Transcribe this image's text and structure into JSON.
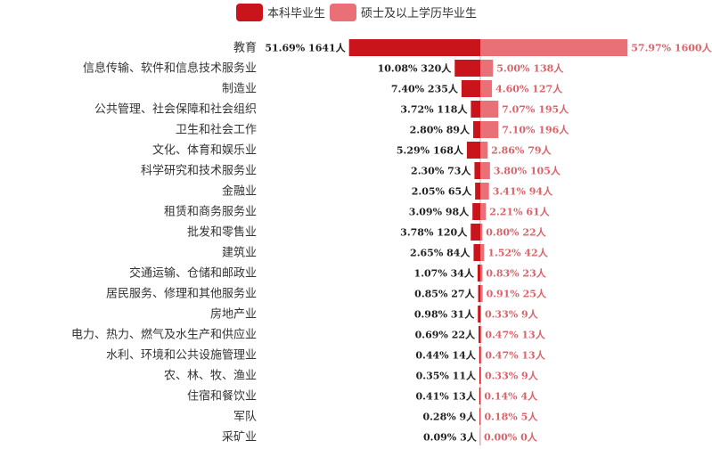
{
  "chart_data": {
    "type": "bar",
    "legend_position": "top-center",
    "colors": {
      "undergrad": "#c9141c",
      "grad": "#ea7078"
    },
    "series": [
      {
        "name": "本科毕业生",
        "key": "undergrad"
      },
      {
        "name": "硕士及以上学历毕业生",
        "key": "grad"
      }
    ],
    "rows": [
      {
        "category": "教育",
        "ug_pct": 51.69,
        "ug_count": 1641,
        "gr_pct": 57.97,
        "gr_count": 1600,
        "ug_label": "51.69%  1641人",
        "gr_label": "57.97%  1600人"
      },
      {
        "category": "信息传输、软件和信息技术服务业",
        "ug_pct": 10.08,
        "ug_count": 320,
        "gr_pct": 5.0,
        "gr_count": 138,
        "ug_label": "10.08%  320人",
        "gr_label": "5.00%  138人"
      },
      {
        "category": "制造业",
        "ug_pct": 7.4,
        "ug_count": 235,
        "gr_pct": 4.6,
        "gr_count": 127,
        "ug_label": "7.40%  235人",
        "gr_label": "4.60%  127人"
      },
      {
        "category": "公共管理、社会保障和社会组织",
        "ug_pct": 3.72,
        "ug_count": 118,
        "gr_pct": 7.07,
        "gr_count": 195,
        "ug_label": "3.72%  118人",
        "gr_label": "7.07%  195人"
      },
      {
        "category": "卫生和社会工作",
        "ug_pct": 2.8,
        "ug_count": 89,
        "gr_pct": 7.1,
        "gr_count": 196,
        "ug_label": "2.80%  89人",
        "gr_label": "7.10%  196人"
      },
      {
        "category": "文化、体育和娱乐业",
        "ug_pct": 5.29,
        "ug_count": 168,
        "gr_pct": 2.86,
        "gr_count": 79,
        "ug_label": "5.29%  168人",
        "gr_label": "2.86%  79人"
      },
      {
        "category": "科学研究和技术服务业",
        "ug_pct": 2.3,
        "ug_count": 73,
        "gr_pct": 3.8,
        "gr_count": 105,
        "ug_label": "2.30%  73人",
        "gr_label": "3.80%  105人"
      },
      {
        "category": "金融业",
        "ug_pct": 2.05,
        "ug_count": 65,
        "gr_pct": 3.41,
        "gr_count": 94,
        "ug_label": "2.05%  65人",
        "gr_label": "3.41%  94人"
      },
      {
        "category": "租赁和商务服务业",
        "ug_pct": 3.09,
        "ug_count": 98,
        "gr_pct": 2.21,
        "gr_count": 61,
        "ug_label": "3.09%  98人",
        "gr_label": "2.21%  61人"
      },
      {
        "category": "批发和零售业",
        "ug_pct": 3.78,
        "ug_count": 120,
        "gr_pct": 0.8,
        "gr_count": 22,
        "ug_label": "3.78%  120人",
        "gr_label": "0.80%  22人"
      },
      {
        "category": "建筑业",
        "ug_pct": 2.65,
        "ug_count": 84,
        "gr_pct": 1.52,
        "gr_count": 42,
        "ug_label": "2.65%  84人",
        "gr_label": "1.52%  42人"
      },
      {
        "category": "交通运输、仓储和邮政业",
        "ug_pct": 1.07,
        "ug_count": 34,
        "gr_pct": 0.83,
        "gr_count": 23,
        "ug_label": "1.07%  34人",
        "gr_label": "0.83%  23人"
      },
      {
        "category": "居民服务、修理和其他服务业",
        "ug_pct": 0.85,
        "ug_count": 27,
        "gr_pct": 0.91,
        "gr_count": 25,
        "ug_label": "0.85%  27人",
        "gr_label": "0.91%  25人"
      },
      {
        "category": "房地产业",
        "ug_pct": 0.98,
        "ug_count": 31,
        "gr_pct": 0.33,
        "gr_count": 9,
        "ug_label": "0.98%  31人",
        "gr_label": "0.33%  9人"
      },
      {
        "category": "电力、热力、燃气及水生产和供应业",
        "ug_pct": 0.69,
        "ug_count": 22,
        "gr_pct": 0.47,
        "gr_count": 13,
        "ug_label": "0.69%  22人",
        "gr_label": "0.47%  13人"
      },
      {
        "category": "水利、环境和公共设施管理业",
        "ug_pct": 0.44,
        "ug_count": 14,
        "gr_pct": 0.47,
        "gr_count": 13,
        "ug_label": "0.44%  14人",
        "gr_label": "0.47%  13人"
      },
      {
        "category": "农、林、牧、渔业",
        "ug_pct": 0.35,
        "ug_count": 11,
        "gr_pct": 0.33,
        "gr_count": 9,
        "ug_label": "0.35%  11人",
        "gr_label": "0.33%  9人"
      },
      {
        "category": "住宿和餐饮业",
        "ug_pct": 0.41,
        "ug_count": 13,
        "gr_pct": 0.14,
        "gr_count": 4,
        "ug_label": "0.41%  13人",
        "gr_label": "0.14%  4人"
      },
      {
        "category": "军队",
        "ug_pct": 0.28,
        "ug_count": 9,
        "gr_pct": 0.18,
        "gr_count": 5,
        "ug_label": "0.28%  9人",
        "gr_label": "0.18%  5人"
      },
      {
        "category": "采矿业",
        "ug_pct": 0.09,
        "ug_count": 3,
        "gr_pct": 0.0,
        "gr_count": 0,
        "ug_label": "0.09%  3人",
        "gr_label": "0.00%  0人"
      }
    ]
  }
}
